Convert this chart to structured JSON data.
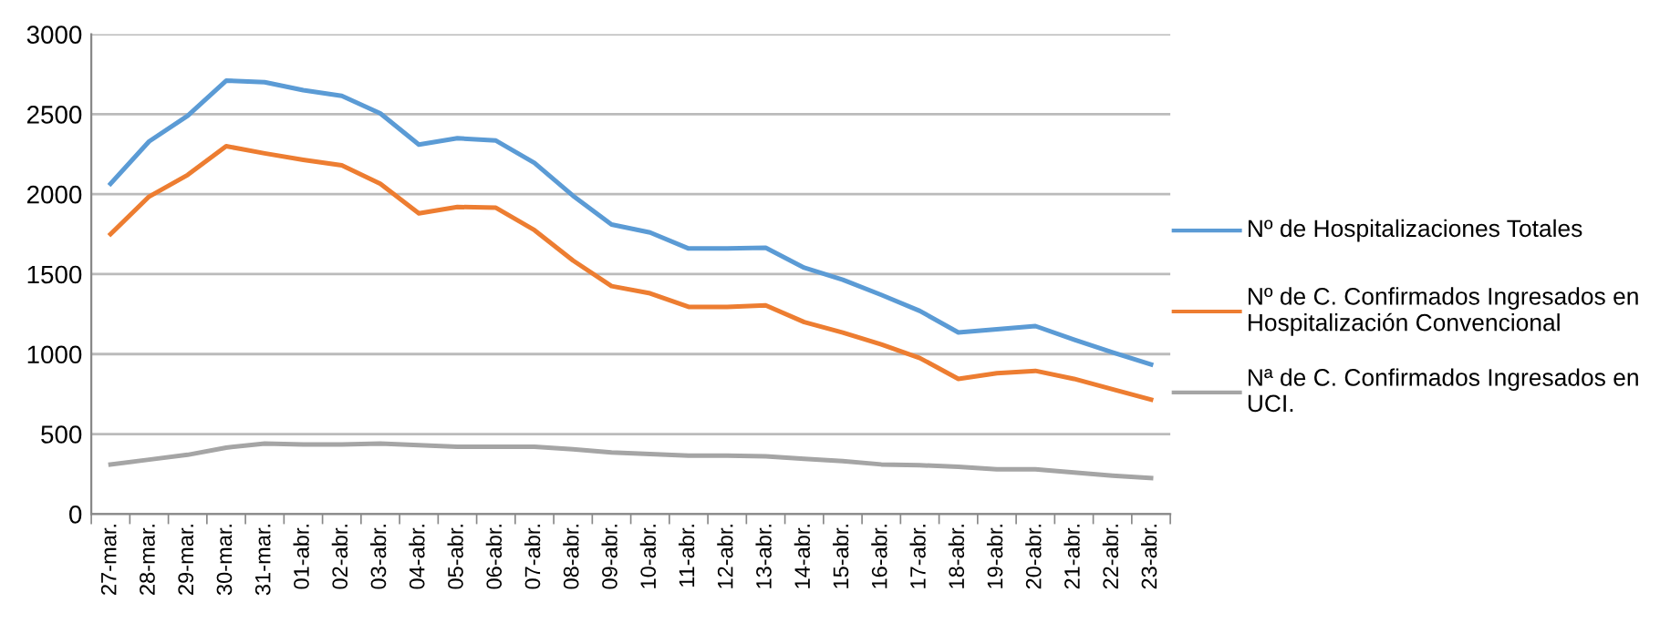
{
  "chart_data": {
    "type": "line",
    "categories": [
      "27-mar.",
      "28-mar.",
      "29-mar.",
      "30-mar.",
      "31-mar.",
      "01-abr.",
      "02-abr.",
      "03-abr.",
      "04-abr.",
      "05-abr.",
      "06-abr.",
      "07-abr.",
      "08-abr.",
      "09-abr.",
      "10-abr.",
      "11-abr.",
      "12-abr.",
      "13-abr.",
      "14-abr.",
      "15-abr.",
      "16-abr.",
      "17-abr.",
      "18-abr.",
      "19-abr.",
      "20-abr.",
      "21-abr.",
      "22-abr.",
      "23-abr."
    ],
    "series": [
      {
        "name": "Nº de Hospitalizaciones Totales",
        "color": "#5b9bd5",
        "values": [
          2065,
          2330,
          2490,
          2710,
          2700,
          2650,
          2615,
          2505,
          2310,
          2350,
          2335,
          2195,
          1990,
          1810,
          1760,
          1660,
          1660,
          1665,
          1540,
          1465,
          1370,
          1270,
          1135,
          1155,
          1175,
          1090,
          1010,
          935
        ]
      },
      {
        "name": "Nº de C. Confirmados Ingresados en Hospitalización Convencional",
        "color": "#ed7d31",
        "values": [
          1750,
          1985,
          2120,
          2300,
          2255,
          2215,
          2180,
          2065,
          1880,
          1920,
          1915,
          1775,
          1585,
          1425,
          1380,
          1295,
          1295,
          1305,
          1200,
          1135,
          1060,
          975,
          845,
          880,
          895,
          845,
          780,
          715
        ]
      },
      {
        "name": "Nª de C. Confirmados Ingresados en UCI.",
        "color": "#a5a5a5",
        "values": [
          310,
          340,
          370,
          415,
          440,
          435,
          435,
          440,
          430,
          420,
          420,
          420,
          405,
          385,
          375,
          365,
          365,
          360,
          345,
          330,
          310,
          305,
          295,
          280,
          280,
          260,
          240,
          225
        ]
      }
    ],
    "ylim": [
      0,
      3000
    ],
    "yticks": [
      0,
      500,
      1000,
      1500,
      2000,
      2500,
      3000
    ],
    "grid": "y",
    "legend": "right",
    "marker": "none",
    "line_style": "solid"
  }
}
